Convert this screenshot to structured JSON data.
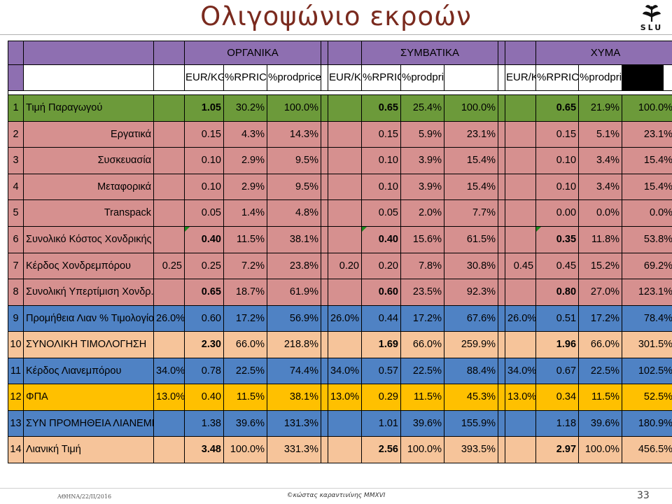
{
  "slide": {
    "title": "Ολιγοψώνιο εκροών",
    "logo_text": "SLU",
    "footer_left": "ΑΘΗΝΑ/22/ΙΙ/2016",
    "footer_center": "©κώστας καραντινίνης MMXVI",
    "page_number": "33"
  },
  "colors": {
    "purple": "#8e6fb1",
    "green": "#6c9a3a",
    "pink": "#d6908f",
    "blue": "#4f82c4",
    "peach": "#f6c49a",
    "gold": "#ffc000"
  },
  "table": {
    "groups": [
      "ΟΡΓΑΝΙΚΑ",
      "ΣΥΜΒΑΤΙΚΑ",
      "ΧΥΜΑ"
    ],
    "subheaders": [
      "EUR/KG",
      "%RPRICE",
      "%prodprice"
    ],
    "rows": [
      {
        "num": "1",
        "label": "Τιμή Παραγωγού",
        "align": "left",
        "color": "green",
        "groups": [
          {
            "extra": "",
            "eur": "1.05",
            "rp": "30.2%",
            "pp": "100.0%",
            "bold": true
          },
          {
            "extra": "",
            "eur": "0.65",
            "rp": "25.4%",
            "pp": "100.0%",
            "bold": true
          },
          {
            "extra": "",
            "eur": "0.65",
            "rp": "21.9%",
            "pp": "100.0%",
            "bold": true
          }
        ]
      },
      {
        "num": "2",
        "label": "Εργατικά",
        "align": "right",
        "color": "pink",
        "groups": [
          {
            "extra": "",
            "eur": "0.15",
            "rp": "4.3%",
            "pp": "14.3%"
          },
          {
            "extra": "",
            "eur": "0.15",
            "rp": "5.9%",
            "pp": "23.1%"
          },
          {
            "extra": "",
            "eur": "0.15",
            "rp": "5.1%",
            "pp": "23.1%"
          }
        ]
      },
      {
        "num": "3",
        "label": "Συσκευασία",
        "align": "right",
        "color": "pink",
        "groups": [
          {
            "extra": "",
            "eur": "0.10",
            "rp": "2.9%",
            "pp": "9.5%"
          },
          {
            "extra": "",
            "eur": "0.10",
            "rp": "3.9%",
            "pp": "15.4%"
          },
          {
            "extra": "",
            "eur": "0.10",
            "rp": "3.4%",
            "pp": "15.4%"
          }
        ]
      },
      {
        "num": "4",
        "label": "Μεταφορικά",
        "align": "right",
        "color": "pink",
        "groups": [
          {
            "extra": "",
            "eur": "0.10",
            "rp": "2.9%",
            "pp": "9.5%"
          },
          {
            "extra": "",
            "eur": "0.10",
            "rp": "3.9%",
            "pp": "15.4%"
          },
          {
            "extra": "",
            "eur": "0.10",
            "rp": "3.4%",
            "pp": "15.4%"
          }
        ]
      },
      {
        "num": "5",
        "label": "Transpack",
        "align": "right",
        "color": "pink",
        "groups": [
          {
            "extra": "",
            "eur": "0.05",
            "rp": "1.4%",
            "pp": "4.8%"
          },
          {
            "extra": "",
            "eur": "0.05",
            "rp": "2.0%",
            "pp": "7.7%"
          },
          {
            "extra": "",
            "eur": "0.00",
            "rp": "0.0%",
            "pp": "0.0%"
          }
        ]
      },
      {
        "num": "6",
        "label": "Συνολικό Κόστος Χονδρικής",
        "align": "right",
        "color": "pink",
        "triangle": true,
        "groups": [
          {
            "extra": "",
            "eur": "0.40",
            "rp": "11.5%",
            "pp": "38.1%",
            "bold": true
          },
          {
            "extra": "",
            "eur": "0.40",
            "rp": "15.6%",
            "pp": "61.5%",
            "bold": true
          },
          {
            "extra": "",
            "eur": "0.35",
            "rp": "11.8%",
            "pp": "53.8%",
            "bold": true
          }
        ]
      },
      {
        "num": "7",
        "label": "Κέρδος Χονδρεμπόρου",
        "align": "left",
        "color": "pink",
        "groups": [
          {
            "extra": "0.25",
            "eur": "0.25",
            "rp": "7.2%",
            "pp": "23.8%"
          },
          {
            "extra": "0.20",
            "eur": "0.20",
            "rp": "7.8%",
            "pp": "30.8%"
          },
          {
            "extra": "0.45",
            "eur": "0.45",
            "rp": "15.2%",
            "pp": "69.2%"
          }
        ]
      },
      {
        "num": "8",
        "label": "Συνολική Υπερτίμιση Χονδρ.",
        "align": "left",
        "color": "pink",
        "groups": [
          {
            "extra": "",
            "eur": "0.65",
            "rp": "18.7%",
            "pp": "61.9%",
            "bold": true
          },
          {
            "extra": "",
            "eur": "0.60",
            "rp": "23.5%",
            "pp": "92.3%",
            "bold": true
          },
          {
            "extra": "",
            "eur": "0.80",
            "rp": "27.0%",
            "pp": "123.1%",
            "bold": true
          }
        ]
      },
      {
        "num": "9",
        "label": "Προμήθεια Λιαν % Τιμολογίου",
        "align": "left",
        "color": "blue",
        "groups": [
          {
            "extra": "26.0%",
            "eur": "0.60",
            "rp": "17.2%",
            "pp": "56.9%"
          },
          {
            "extra": "26.0%",
            "eur": "0.44",
            "rp": "17.2%",
            "pp": "67.6%"
          },
          {
            "extra": "26.0%",
            "eur": "0.51",
            "rp": "17.2%",
            "pp": "78.4%"
          }
        ]
      },
      {
        "num": "10",
        "label": "ΣΥΝΟΛΙΚΗ ΤΙΜΟΛΟΓΗΣΗ",
        "align": "left",
        "color": "peach",
        "groups": [
          {
            "extra": "",
            "eur": "2.30",
            "rp": "66.0%",
            "pp": "218.8%",
            "bold": true
          },
          {
            "extra": "",
            "eur": "1.69",
            "rp": "66.0%",
            "pp": "259.9%",
            "bold": true
          },
          {
            "extra": "",
            "eur": "1.96",
            "rp": "66.0%",
            "pp": "301.5%",
            "bold": true
          }
        ]
      },
      {
        "num": "11",
        "label": "Κέρδος Λιανεμπόρου",
        "align": "left",
        "color": "blue",
        "groups": [
          {
            "extra": "34.0%",
            "eur": "0.78",
            "rp": "22.5%",
            "pp": "74.4%"
          },
          {
            "extra": "34.0%",
            "eur": "0.57",
            "rp": "22.5%",
            "pp": "88.4%"
          },
          {
            "extra": "34.0%",
            "eur": "0.67",
            "rp": "22.5%",
            "pp": "102.5%"
          }
        ]
      },
      {
        "num": "12",
        "label": "ΦΠΑ",
        "align": "left",
        "color": "gold",
        "groups": [
          {
            "extra": "13.0%",
            "eur": "0.40",
            "rp": "11.5%",
            "pp": "38.1%"
          },
          {
            "extra": "13.0%",
            "eur": "0.29",
            "rp": "11.5%",
            "pp": "45.3%"
          },
          {
            "extra": "13.0%",
            "eur": "0.34",
            "rp": "11.5%",
            "pp": "52.5%"
          }
        ]
      },
      {
        "num": "13",
        "label": "ΣΥΝ ΠΡΟΜΗΘΕΙΑ ΛΙΑΝΕΜΠΟΡΟΥ",
        "align": "left",
        "color": "blue",
        "groups": [
          {
            "extra": "",
            "eur": "1.38",
            "rp": "39.6%",
            "pp": "131.3%"
          },
          {
            "extra": "",
            "eur": "1.01",
            "rp": "39.6%",
            "pp": "155.9%"
          },
          {
            "extra": "",
            "eur": "1.18",
            "rp": "39.6%",
            "pp": "180.9%"
          }
        ]
      },
      {
        "num": "14",
        "label": "Λιανική Τιμή",
        "align": "left",
        "color": "peach",
        "groups": [
          {
            "extra": "",
            "eur": "3.48",
            "rp": "100.0%",
            "pp": "331.3%",
            "bold": true
          },
          {
            "extra": "",
            "eur": "2.56",
            "rp": "100.0%",
            "pp": "393.5%",
            "bold": true
          },
          {
            "extra": "",
            "eur": "2.97",
            "rp": "100.0%",
            "pp": "456.5%",
            "bold": true
          }
        ]
      }
    ]
  }
}
